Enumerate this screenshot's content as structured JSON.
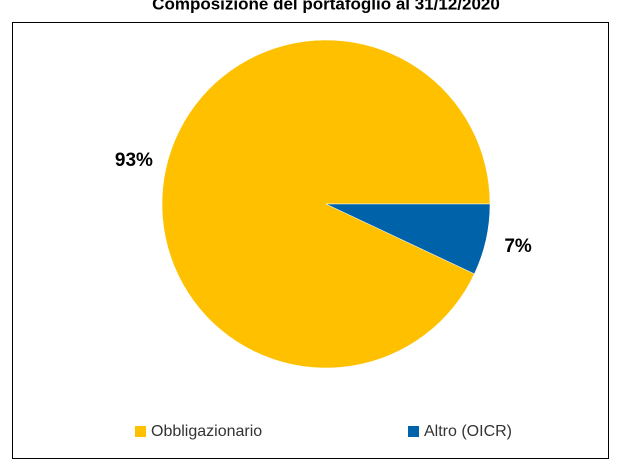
{
  "chart_data": {
    "type": "pie",
    "title": "Composizione del portafoglio al 31/12/2020",
    "categories": [
      "Obbligazionario",
      "Altro (OICR)"
    ],
    "values": [
      93,
      7
    ],
    "value_labels": [
      "93%",
      "7%"
    ],
    "colors": [
      "#FFC000",
      "#0062A8"
    ],
    "legend": "bottom"
  }
}
